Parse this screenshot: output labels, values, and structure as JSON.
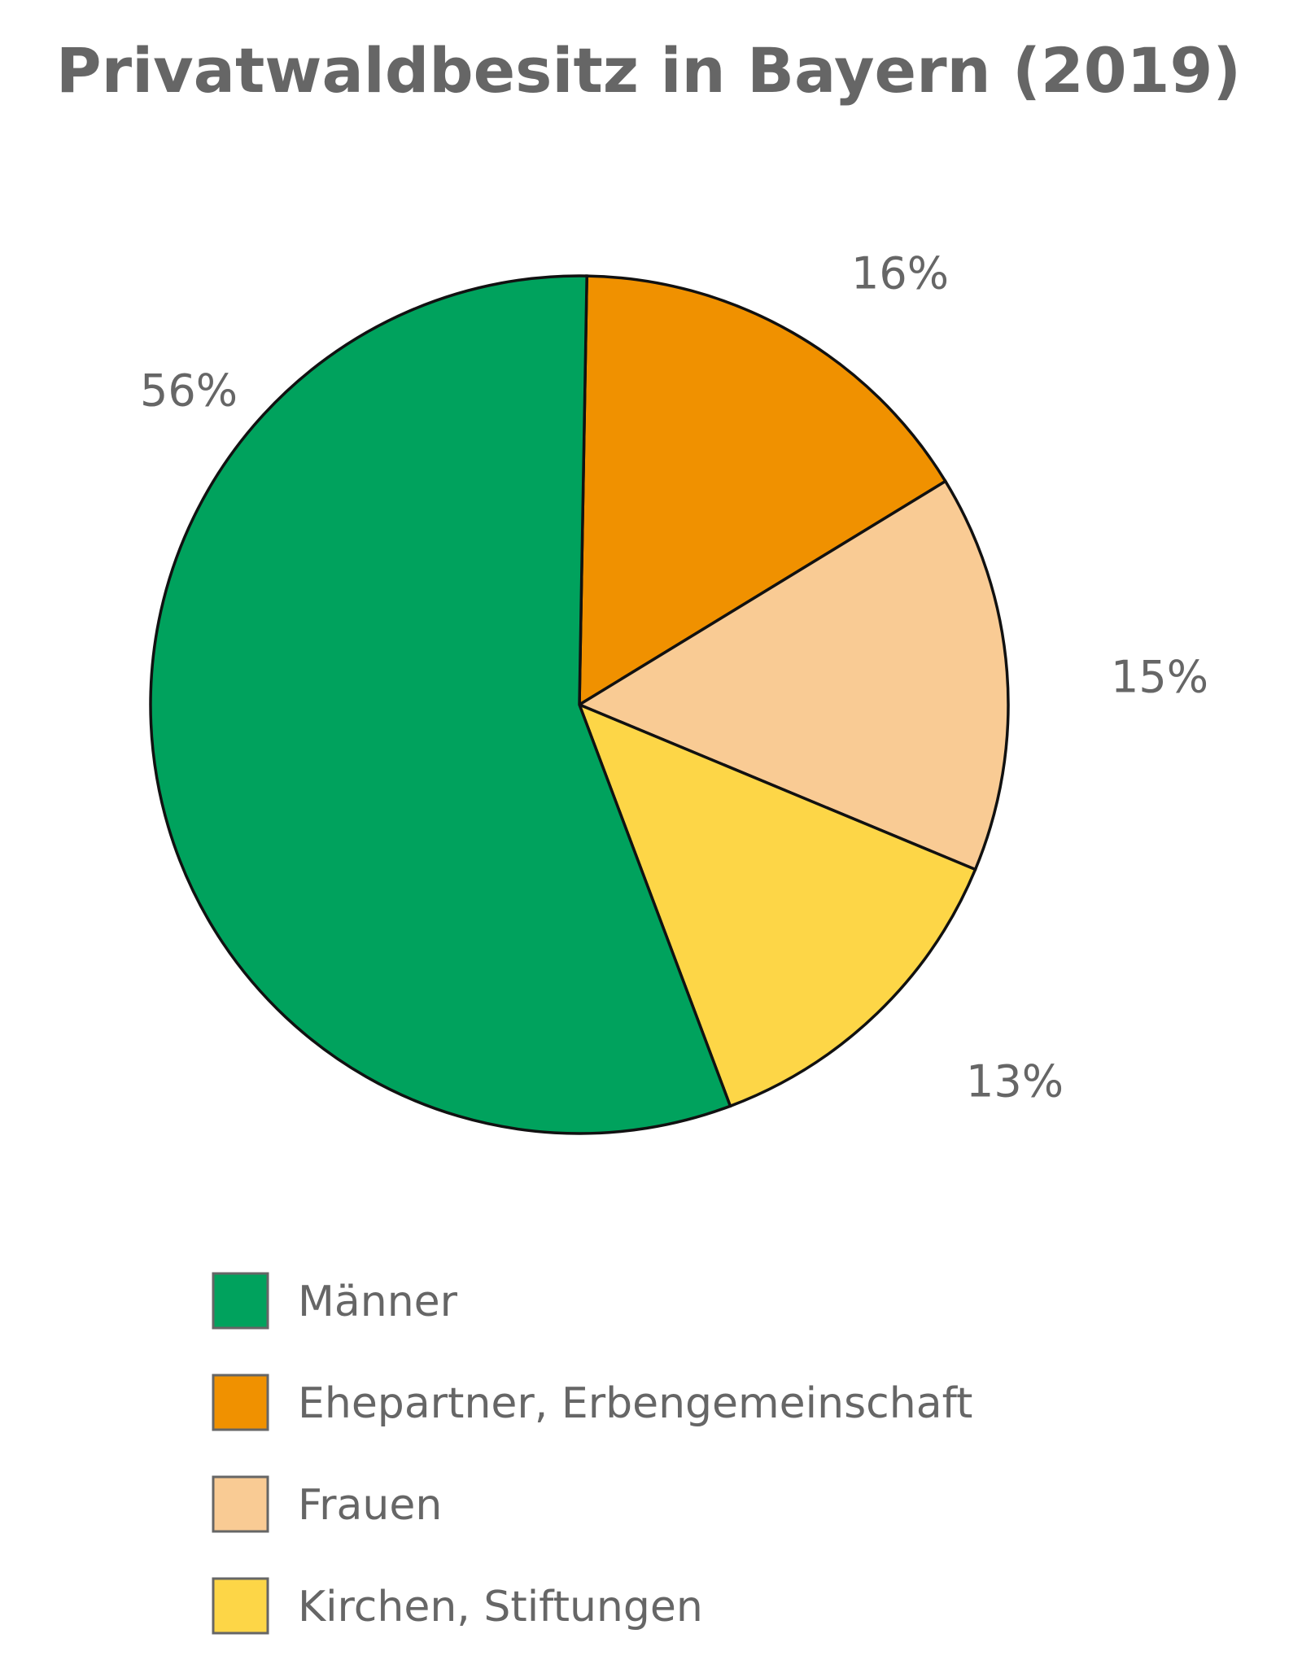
{
  "chart_data": {
    "type": "pie",
    "title": "Privatwaldbesitz in Bayern (2019)",
    "categories": [
      "Männer",
      "Ehepartner, Erbengemeinschaft",
      "Frauen",
      "Kirchen, Stiftungen"
    ],
    "values": [
      56,
      16,
      15,
      13
    ],
    "value_labels": [
      "56%",
      "16%",
      "15%",
      "13%"
    ],
    "colors": [
      "#00a25d",
      "#f09100",
      "#f9cb94",
      "#fdd647"
    ]
  }
}
